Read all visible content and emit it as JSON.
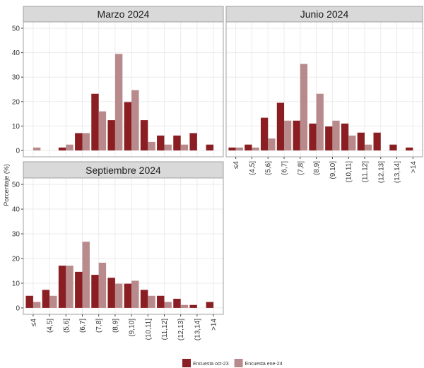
{
  "chart_data": {
    "type": "bar",
    "ylabel": "Porcentaje (%)",
    "categories": [
      "≤4",
      "(4,5]",
      "(5,6]",
      "(6,7]",
      "(7,8]",
      "(8,9]",
      "(9,10]",
      "(10,11]",
      "(11,12]",
      "(12,13]",
      "(13,14]",
      ">14"
    ],
    "series": [
      {
        "name": "Encuesta oct-23",
        "color": "#8b1e22"
      },
      {
        "name": "Encuesta ene-24",
        "color": "#b98a8c"
      }
    ],
    "ylim": [
      -2.6,
      52.6
    ],
    "yticks": [
      0,
      10,
      20,
      30,
      40,
      50
    ],
    "grid": true,
    "facets": [
      {
        "title": "Marzo 2024",
        "series": [
          {
            "values": [
              0,
              0,
              1.2,
              7.1,
              23.2,
              12.4,
              19.8,
              12.4,
              6.1,
              6.1,
              7.1,
              2.4
            ]
          },
          {
            "values": [
              1.2,
              0,
              2.4,
              7.1,
              16,
              39.5,
              24.7,
              3.5,
              2.4,
              2.4,
              0,
              0
            ]
          }
        ]
      },
      {
        "title": "Junio 2024",
        "series": [
          {
            "values": [
              1.2,
              2.4,
              13.4,
              19.5,
              12.2,
              11,
              9.8,
              11,
              7.3,
              7.3,
              2.4,
              1.2
            ]
          },
          {
            "values": [
              1.2,
              1.2,
              4.9,
              12.2,
              35.4,
              23.2,
              12.2,
              6.1,
              2.4,
              0,
              0,
              0
            ]
          }
        ]
      },
      {
        "title": "Septiembre 2024",
        "series": [
          {
            "values": [
              4.9,
              7.3,
              17.1,
              14.6,
              13.4,
              12.2,
              9.8,
              7.3,
              4.9,
              3.7,
              1.2,
              2.4
            ]
          },
          {
            "values": [
              2.4,
              4.9,
              17.1,
              26.8,
              18.3,
              9.8,
              11,
              4.9,
              2.4,
              1.2,
              0,
              0
            ]
          }
        ]
      }
    ]
  }
}
